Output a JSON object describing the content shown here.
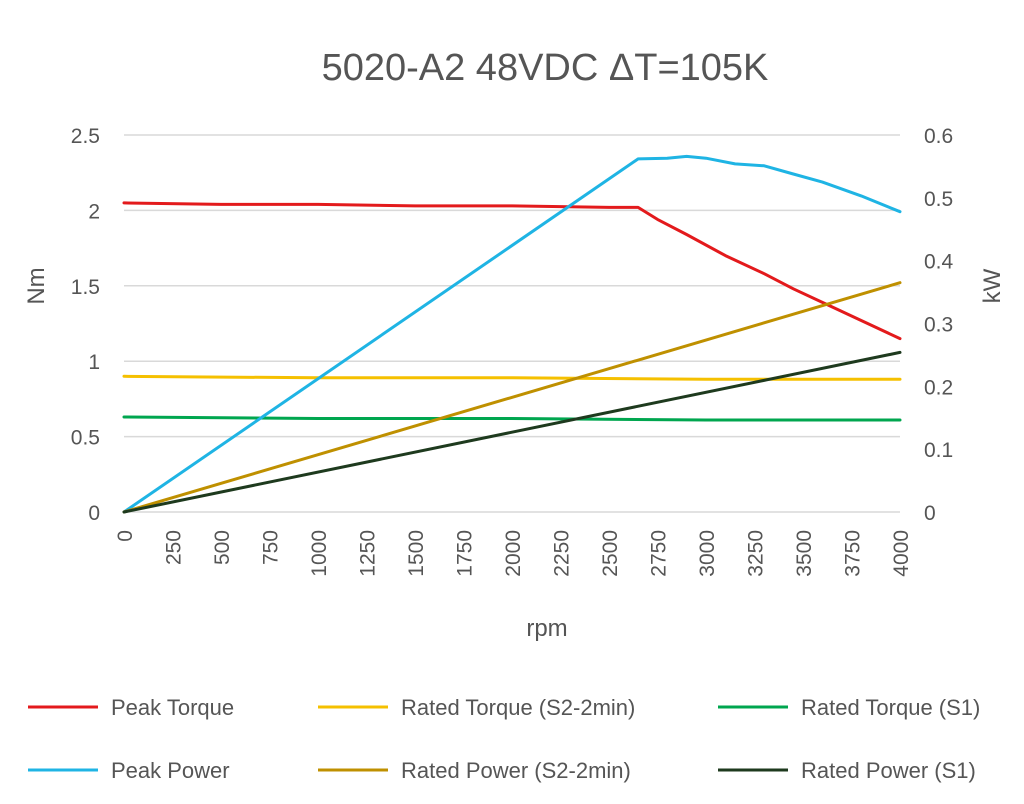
{
  "chart_data": {
    "type": "line",
    "title": "5020-A2 48VDC ΔT=105K",
    "xlabel": "rpm",
    "ylabel_left": "Nm",
    "ylabel_right": "kW",
    "x_ticks": [
      "0",
      "250",
      "500",
      "750",
      "1000",
      "1250",
      "1500",
      "1750",
      "2000",
      "2250",
      "2500",
      "2750",
      "3000",
      "3250",
      "3500",
      "3750",
      "4000"
    ],
    "y_left_ticks": [
      "0",
      "0.5",
      "1",
      "1.5",
      "2",
      "2.5"
    ],
    "y_right_ticks": [
      "0",
      "0.1",
      "0.2",
      "0.3",
      "0.4",
      "0.5",
      "0.6"
    ],
    "xlim": [
      0,
      4000
    ],
    "ylim_left": [
      0,
      2.5
    ],
    "ylim_right": [
      0,
      0.6
    ],
    "grid": true,
    "legend_position": "bottom",
    "series": [
      {
        "name": "Peak Torque",
        "axis": "left",
        "color": "#e31a1c",
        "x": [
          0,
          500,
          1000,
          1500,
          2000,
          2500,
          2650,
          2750,
          2900,
          3100,
          3300,
          3450,
          3600,
          3800,
          4000
        ],
        "y": [
          2.05,
          2.04,
          2.04,
          2.03,
          2.03,
          2.02,
          2.02,
          1.94,
          1.84,
          1.7,
          1.58,
          1.48,
          1.39,
          1.27,
          1.15
        ]
      },
      {
        "name": "Rated Torque (S2-2min)",
        "axis": "left",
        "color": "#f5c000",
        "x": [
          0,
          1000,
          2000,
          3000,
          4000
        ],
        "y": [
          0.9,
          0.89,
          0.89,
          0.88,
          0.88
        ]
      },
      {
        "name": "Rated Torque (S1)",
        "axis": "left",
        "color": "#00a64f",
        "x": [
          0,
          1000,
          2000,
          3000,
          4000
        ],
        "y": [
          0.63,
          0.62,
          0.62,
          0.61,
          0.61
        ]
      },
      {
        "name": "Peak Power",
        "axis": "right",
        "color": "#1fb4e4",
        "x": [
          0,
          2650,
          2800,
          2900,
          3000,
          3150,
          3300,
          3450,
          3600,
          3800,
          4000
        ],
        "y": [
          0,
          0.562,
          0.563,
          0.566,
          0.563,
          0.554,
          0.551,
          0.538,
          0.525,
          0.503,
          0.478
        ]
      },
      {
        "name": "Rated Power (S2-2min)",
        "axis": "right",
        "color": "#bf9000",
        "x": [
          0,
          4000
        ],
        "y": [
          0,
          0.365
        ]
      },
      {
        "name": "Rated Power (S1)",
        "axis": "right",
        "color": "#1e3a1e",
        "x": [
          0,
          4000
        ],
        "y": [
          0,
          0.254
        ]
      }
    ]
  }
}
